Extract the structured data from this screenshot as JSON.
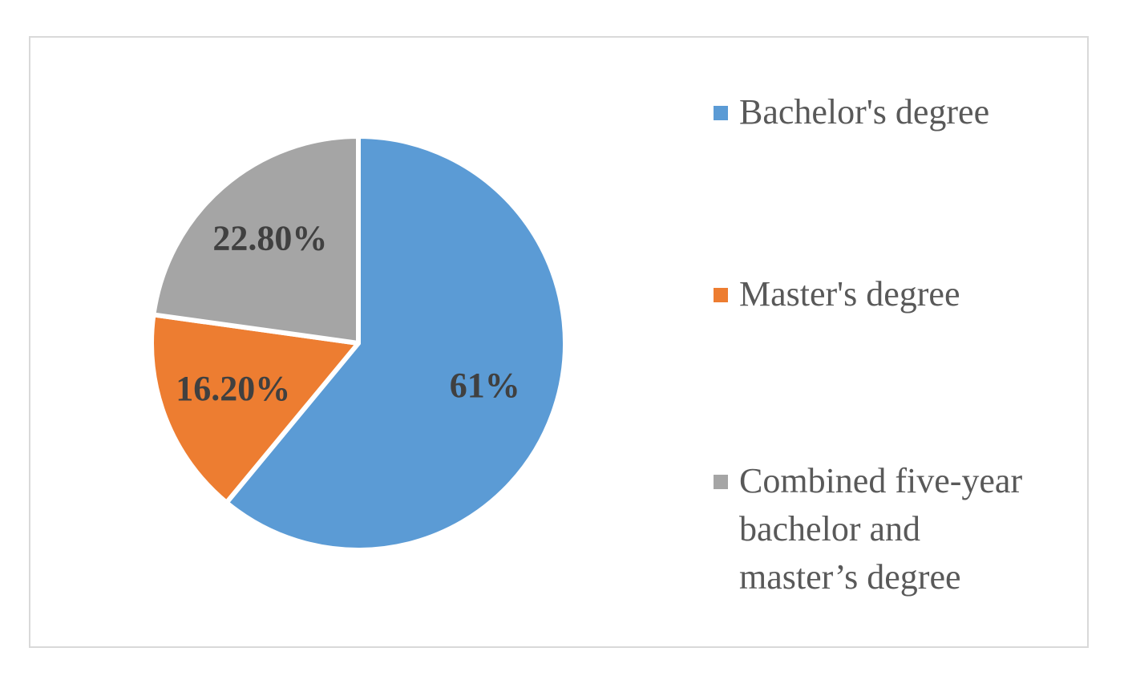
{
  "chart_data": {
    "type": "pie",
    "categories": [
      "Bachelor's degree",
      "Master's degree",
      "Combined five-year bachelor and master’s degree"
    ],
    "values": [
      61,
      16.2,
      22.8
    ],
    "value_labels": [
      "61%",
      "16.20%",
      "22.80%"
    ],
    "colors": [
      "#5b9bd5",
      "#ed7d31",
      "#a5a5a5"
    ],
    "legend": "right"
  }
}
